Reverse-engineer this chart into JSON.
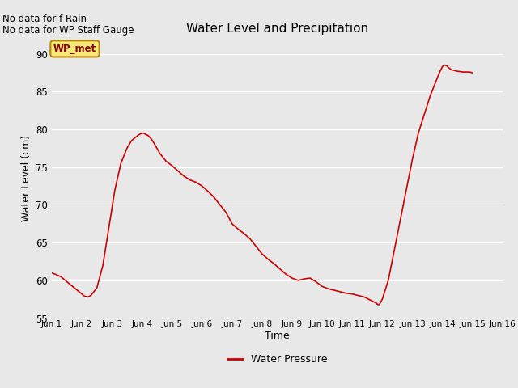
{
  "title": "Water Level and Precipitation",
  "xlabel": "Time",
  "ylabel": "Water Level (cm)",
  "ylim": [
    55,
    92
  ],
  "yticks": [
    55,
    60,
    65,
    70,
    75,
    80,
    85,
    90
  ],
  "line_color": "#cc0000",
  "line_width": 1.2,
  "fig_bg_color": "#e8e8e8",
  "plot_bg": "#e8e8e8",
  "no_data_text1": "No data for f Rain",
  "no_data_text2": "No data for WP Staff Gauge",
  "legend_label": "Water Pressure",
  "legend_box_text": "WP_met",
  "xtick_labels": [
    "Jun 1",
    "Jun 2",
    "Jun 3",
    "Jun 4",
    "Jun 5",
    "Jun 6",
    "Jun 7",
    "Jun 8",
    "Jun 9",
    "Jun 10",
    "Jun 11",
    "Jun 12",
    "Jun 13",
    "Jun 14",
    "Jun 15",
    "Jun 16"
  ],
  "x_data": [
    1.0,
    1.3,
    1.6,
    2.0,
    2.05,
    2.1,
    2.15,
    2.2,
    2.3,
    2.5,
    2.7,
    2.9,
    3.1,
    3.3,
    3.5,
    3.65,
    3.8,
    3.9,
    4.0,
    4.05,
    4.1,
    4.15,
    4.2,
    4.3,
    4.4,
    4.5,
    4.6,
    4.7,
    4.8,
    5.0,
    5.2,
    5.4,
    5.6,
    5.8,
    6.0,
    6.2,
    6.4,
    6.6,
    6.8,
    7.0,
    7.2,
    7.4,
    7.6,
    7.8,
    8.0,
    8.2,
    8.4,
    8.6,
    8.8,
    9.0,
    9.2,
    9.4,
    9.6,
    9.8,
    10.0,
    10.2,
    10.4,
    10.6,
    10.8,
    11.0,
    11.2,
    11.4,
    11.5,
    11.6,
    11.7,
    11.75,
    11.8,
    11.85,
    11.9,
    12.0,
    12.2,
    12.5,
    12.8,
    13.0,
    13.2,
    13.4,
    13.6,
    13.8,
    13.9,
    14.0,
    14.05,
    14.1,
    14.15,
    14.2,
    14.3,
    14.5,
    14.7,
    14.9,
    15.0
  ],
  "y_data": [
    61.0,
    60.5,
    59.5,
    58.2,
    58.0,
    57.9,
    57.85,
    57.8,
    58.0,
    59.0,
    62.0,
    67.0,
    72.0,
    75.5,
    77.5,
    78.5,
    79.0,
    79.3,
    79.5,
    79.5,
    79.4,
    79.3,
    79.2,
    78.8,
    78.2,
    77.5,
    76.8,
    76.3,
    75.8,
    75.2,
    74.5,
    73.8,
    73.3,
    73.0,
    72.5,
    71.8,
    71.0,
    70.0,
    69.0,
    67.5,
    66.8,
    66.2,
    65.5,
    64.5,
    63.5,
    62.8,
    62.2,
    61.5,
    60.8,
    60.3,
    60.0,
    60.2,
    60.3,
    59.8,
    59.2,
    58.9,
    58.7,
    58.5,
    58.3,
    58.2,
    58.0,
    57.8,
    57.6,
    57.4,
    57.2,
    57.1,
    57.0,
    56.8,
    56.8,
    57.5,
    60.0,
    66.0,
    72.0,
    76.0,
    79.5,
    82.0,
    84.5,
    86.5,
    87.5,
    88.3,
    88.5,
    88.5,
    88.4,
    88.2,
    87.9,
    87.7,
    87.6,
    87.6,
    87.5
  ]
}
